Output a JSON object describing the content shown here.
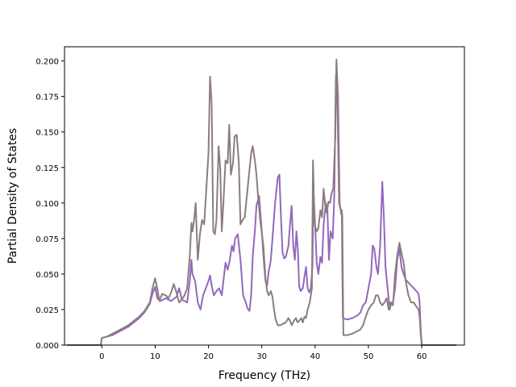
{
  "chart_data": {
    "type": "line",
    "title": "",
    "xlabel": "Frequency (THz)",
    "ylabel": "Partial Density of States",
    "xlim": [
      -7.0,
      68.0
    ],
    "ylim": [
      0.0,
      0.21
    ],
    "xticks": [
      0,
      10,
      20,
      30,
      40,
      50,
      60
    ],
    "yticks": [
      0.0,
      0.025,
      0.05,
      0.075,
      0.1,
      0.125,
      0.15,
      0.175,
      0.2
    ],
    "xtick_labels": [
      "0",
      "10",
      "20",
      "30",
      "40",
      "50",
      "60"
    ],
    "ytick_labels": [
      "0.000",
      "0.025",
      "0.050",
      "0.075",
      "0.100",
      "0.125",
      "0.150",
      "0.175",
      "0.200"
    ],
    "grid": false,
    "legend": "none",
    "series": [
      {
        "color": "#9467bd",
        "points": [
          [
            -6.5,
            0
          ],
          [
            -0.2,
            0
          ],
          [
            0,
            0.005
          ],
          [
            1,
            0.006
          ],
          [
            2,
            0.007
          ],
          [
            3,
            0.009
          ],
          [
            4,
            0.011
          ],
          [
            5,
            0.013
          ],
          [
            6,
            0.016
          ],
          [
            7,
            0.019
          ],
          [
            8,
            0.023
          ],
          [
            9,
            0.029
          ],
          [
            9.5,
            0.036
          ],
          [
            10,
            0.041
          ],
          [
            10.4,
            0.033
          ],
          [
            11,
            0.031
          ],
          [
            12,
            0.033
          ],
          [
            13,
            0.031
          ],
          [
            14,
            0.034
          ],
          [
            14.5,
            0.04
          ],
          [
            15,
            0.032
          ],
          [
            16,
            0.03
          ],
          [
            16.5,
            0.045
          ],
          [
            16.8,
            0.06
          ],
          [
            17,
            0.05
          ],
          [
            17.5,
            0.045
          ],
          [
            18,
            0.03
          ],
          [
            18.5,
            0.025
          ],
          [
            19,
            0.035
          ],
          [
            19.5,
            0.04
          ],
          [
            20,
            0.045
          ],
          [
            20.3,
            0.049
          ],
          [
            20.7,
            0.04
          ],
          [
            21,
            0.035
          ],
          [
            21.5,
            0.038
          ],
          [
            22,
            0.04
          ],
          [
            22.5,
            0.035
          ],
          [
            22.8,
            0.045
          ],
          [
            23.2,
            0.058
          ],
          [
            23.6,
            0.053
          ],
          [
            24,
            0.06
          ],
          [
            24.4,
            0.07
          ],
          [
            24.7,
            0.066
          ],
          [
            25,
            0.075
          ],
          [
            25.5,
            0.078
          ],
          [
            26,
            0.06
          ],
          [
            26.5,
            0.035
          ],
          [
            27,
            0.03
          ],
          [
            27.3,
            0.026
          ],
          [
            27.7,
            0.024
          ],
          [
            28,
            0.035
          ],
          [
            28.3,
            0.062
          ],
          [
            28.7,
            0.08
          ],
          [
            29,
            0.098
          ],
          [
            29.5,
            0.105
          ],
          [
            30,
            0.08
          ],
          [
            30.4,
            0.058
          ],
          [
            30.7,
            0.045
          ],
          [
            31,
            0.042
          ],
          [
            31.3,
            0.052
          ],
          [
            31.7,
            0.06
          ],
          [
            32,
            0.075
          ],
          [
            32.5,
            0.1
          ],
          [
            33,
            0.118
          ],
          [
            33.3,
            0.12
          ],
          [
            33.6,
            0.09
          ],
          [
            33.9,
            0.065
          ],
          [
            34.2,
            0.061
          ],
          [
            34.5,
            0.062
          ],
          [
            35,
            0.07
          ],
          [
            35.3,
            0.085
          ],
          [
            35.6,
            0.098
          ],
          [
            35.9,
            0.07
          ],
          [
            36.2,
            0.06
          ],
          [
            36.5,
            0.08
          ],
          [
            36.8,
            0.065
          ],
          [
            37,
            0.042
          ],
          [
            37.3,
            0.038
          ],
          [
            37.7,
            0.04
          ],
          [
            38,
            0.048
          ],
          [
            38.3,
            0.055
          ],
          [
            38.6,
            0.04
          ],
          [
            38.9,
            0.037
          ],
          [
            39.2,
            0.04
          ],
          [
            39.5,
            0.055
          ],
          [
            39.7,
            0.108
          ],
          [
            40,
            0.085
          ],
          [
            40.3,
            0.058
          ],
          [
            40.6,
            0.05
          ],
          [
            41,
            0.062
          ],
          [
            41.3,
            0.058
          ],
          [
            41.6,
            0.085
          ],
          [
            42,
            0.1
          ],
          [
            42.3,
            0.096
          ],
          [
            42.6,
            0.06
          ],
          [
            42.9,
            0.08
          ],
          [
            43.3,
            0.075
          ],
          [
            43.6,
            0.105
          ],
          [
            43.9,
            0.19
          ],
          [
            44.2,
            0.17
          ],
          [
            44.5,
            0.1
          ],
          [
            44.8,
            0.095
          ],
          [
            45,
            0.095
          ],
          [
            45.2,
            0.019
          ],
          [
            46,
            0.018
          ],
          [
            47,
            0.019
          ],
          [
            48,
            0.021
          ],
          [
            48.5,
            0.023
          ],
          [
            49,
            0.028
          ],
          [
            49.5,
            0.03
          ],
          [
            50,
            0.04
          ],
          [
            50.5,
            0.05
          ],
          [
            50.8,
            0.07
          ],
          [
            51.1,
            0.068
          ],
          [
            51.5,
            0.055
          ],
          [
            51.8,
            0.05
          ],
          [
            52.2,
            0.07
          ],
          [
            52.6,
            0.115
          ],
          [
            52.9,
            0.09
          ],
          [
            53.2,
            0.055
          ],
          [
            53.6,
            0.04
          ],
          [
            54,
            0.025
          ],
          [
            54.3,
            0.03
          ],
          [
            54.6,
            0.03
          ],
          [
            55,
            0.04
          ],
          [
            55.4,
            0.06
          ],
          [
            55.8,
            0.068
          ],
          [
            56.2,
            0.055
          ],
          [
            56.6,
            0.05
          ],
          [
            57,
            0.046
          ],
          [
            57.5,
            0.044
          ],
          [
            58,
            0.042
          ],
          [
            58.5,
            0.04
          ],
          [
            59,
            0.038
          ],
          [
            59.4,
            0.036
          ],
          [
            59.6,
            0.03
          ],
          [
            59.8,
            0.012
          ],
          [
            60,
            0
          ],
          [
            66.5,
            0
          ]
        ]
      },
      {
        "color": "#8c7d7d",
        "points": [
          [
            -6.5,
            0
          ],
          [
            -0.2,
            0
          ],
          [
            0,
            0.005
          ],
          [
            1,
            0.006
          ],
          [
            2,
            0.008
          ],
          [
            3,
            0.01
          ],
          [
            4,
            0.012
          ],
          [
            5,
            0.014
          ],
          [
            6,
            0.017
          ],
          [
            7,
            0.02
          ],
          [
            8,
            0.024
          ],
          [
            9,
            0.03
          ],
          [
            9.5,
            0.04
          ],
          [
            10,
            0.047
          ],
          [
            10.4,
            0.04
          ],
          [
            10.8,
            0.031
          ],
          [
            11.3,
            0.036
          ],
          [
            12,
            0.035
          ],
          [
            12.5,
            0.033
          ],
          [
            13,
            0.037
          ],
          [
            13.5,
            0.043
          ],
          [
            14,
            0.037
          ],
          [
            14.5,
            0.03
          ],
          [
            15,
            0.032
          ],
          [
            15.5,
            0.035
          ],
          [
            16,
            0.04
          ],
          [
            16.5,
            0.063
          ],
          [
            16.8,
            0.086
          ],
          [
            17,
            0.08
          ],
          [
            17.3,
            0.088
          ],
          [
            17.6,
            0.1
          ],
          [
            18,
            0.06
          ],
          [
            18.4,
            0.078
          ],
          [
            18.8,
            0.088
          ],
          [
            19.2,
            0.085
          ],
          [
            19.6,
            0.11
          ],
          [
            20,
            0.135
          ],
          [
            20.3,
            0.189
          ],
          [
            20.6,
            0.17
          ],
          [
            20.9,
            0.08
          ],
          [
            21.2,
            0.078
          ],
          [
            21.5,
            0.088
          ],
          [
            21.9,
            0.14
          ],
          [
            22.2,
            0.125
          ],
          [
            22.5,
            0.08
          ],
          [
            22.8,
            0.1
          ],
          [
            23.2,
            0.13
          ],
          [
            23.6,
            0.128
          ],
          [
            23.9,
            0.155
          ],
          [
            24.2,
            0.12
          ],
          [
            24.6,
            0.128
          ],
          [
            24.9,
            0.147
          ],
          [
            25.3,
            0.148
          ],
          [
            25.7,
            0.128
          ],
          [
            26,
            0.085
          ],
          [
            26.4,
            0.088
          ],
          [
            26.8,
            0.09
          ],
          [
            27.2,
            0.105
          ],
          [
            27.6,
            0.12
          ],
          [
            28,
            0.135
          ],
          [
            28.3,
            0.14
          ],
          [
            28.7,
            0.13
          ],
          [
            29,
            0.12
          ],
          [
            29.3,
            0.105
          ],
          [
            29.7,
            0.088
          ],
          [
            30,
            0.079
          ],
          [
            30.3,
            0.07
          ],
          [
            30.7,
            0.047
          ],
          [
            31,
            0.038
          ],
          [
            31.3,
            0.035
          ],
          [
            31.7,
            0.038
          ],
          [
            32,
            0.034
          ],
          [
            32.3,
            0.025
          ],
          [
            32.6,
            0.018
          ],
          [
            33,
            0.014
          ],
          [
            33.5,
            0.014
          ],
          [
            34,
            0.015
          ],
          [
            34.5,
            0.016
          ],
          [
            35,
            0.019
          ],
          [
            35.3,
            0.017
          ],
          [
            35.6,
            0.014
          ],
          [
            36,
            0.017
          ],
          [
            36.4,
            0.019
          ],
          [
            36.7,
            0.016
          ],
          [
            37,
            0.017
          ],
          [
            37.4,
            0.019
          ],
          [
            37.7,
            0.016
          ],
          [
            38,
            0.02
          ],
          [
            38.3,
            0.019
          ],
          [
            38.6,
            0.025
          ],
          [
            39,
            0.03
          ],
          [
            39.4,
            0.04
          ],
          [
            39.6,
            0.13
          ],
          [
            39.9,
            0.085
          ],
          [
            40.3,
            0.08
          ],
          [
            40.6,
            0.082
          ],
          [
            41,
            0.095
          ],
          [
            41.3,
            0.09
          ],
          [
            41.6,
            0.11
          ],
          [
            41.9,
            0.098
          ],
          [
            42.2,
            0.093
          ],
          [
            42.5,
            0.101
          ],
          [
            42.8,
            0.1
          ],
          [
            43.1,
            0.107
          ],
          [
            43.4,
            0.11
          ],
          [
            43.8,
            0.148
          ],
          [
            44,
            0.201
          ],
          [
            44.3,
            0.175
          ],
          [
            44.6,
            0.1
          ],
          [
            44.9,
            0.092
          ],
          [
            45.1,
            0.092
          ],
          [
            45.3,
            0.007
          ],
          [
            46,
            0.007
          ],
          [
            47,
            0.008
          ],
          [
            48,
            0.01
          ],
          [
            48.5,
            0.011
          ],
          [
            49,
            0.014
          ],
          [
            49.5,
            0.02
          ],
          [
            50,
            0.025
          ],
          [
            50.5,
            0.028
          ],
          [
            51,
            0.03
          ],
          [
            51.4,
            0.035
          ],
          [
            51.8,
            0.035
          ],
          [
            52.2,
            0.03
          ],
          [
            52.6,
            0.028
          ],
          [
            53,
            0.03
          ],
          [
            53.4,
            0.033
          ],
          [
            53.8,
            0.025
          ],
          [
            54.2,
            0.03
          ],
          [
            54.6,
            0.028
          ],
          [
            55,
            0.05
          ],
          [
            55.4,
            0.063
          ],
          [
            55.8,
            0.072
          ],
          [
            56.2,
            0.065
          ],
          [
            56.6,
            0.058
          ],
          [
            57,
            0.045
          ],
          [
            57.5,
            0.035
          ],
          [
            58,
            0.03
          ],
          [
            58.5,
            0.03
          ],
          [
            59,
            0.027
          ],
          [
            59.4,
            0.025
          ],
          [
            59.6,
            0.02
          ],
          [
            59.8,
            0.008
          ],
          [
            60,
            0
          ],
          [
            66.5,
            0
          ]
        ]
      }
    ]
  }
}
